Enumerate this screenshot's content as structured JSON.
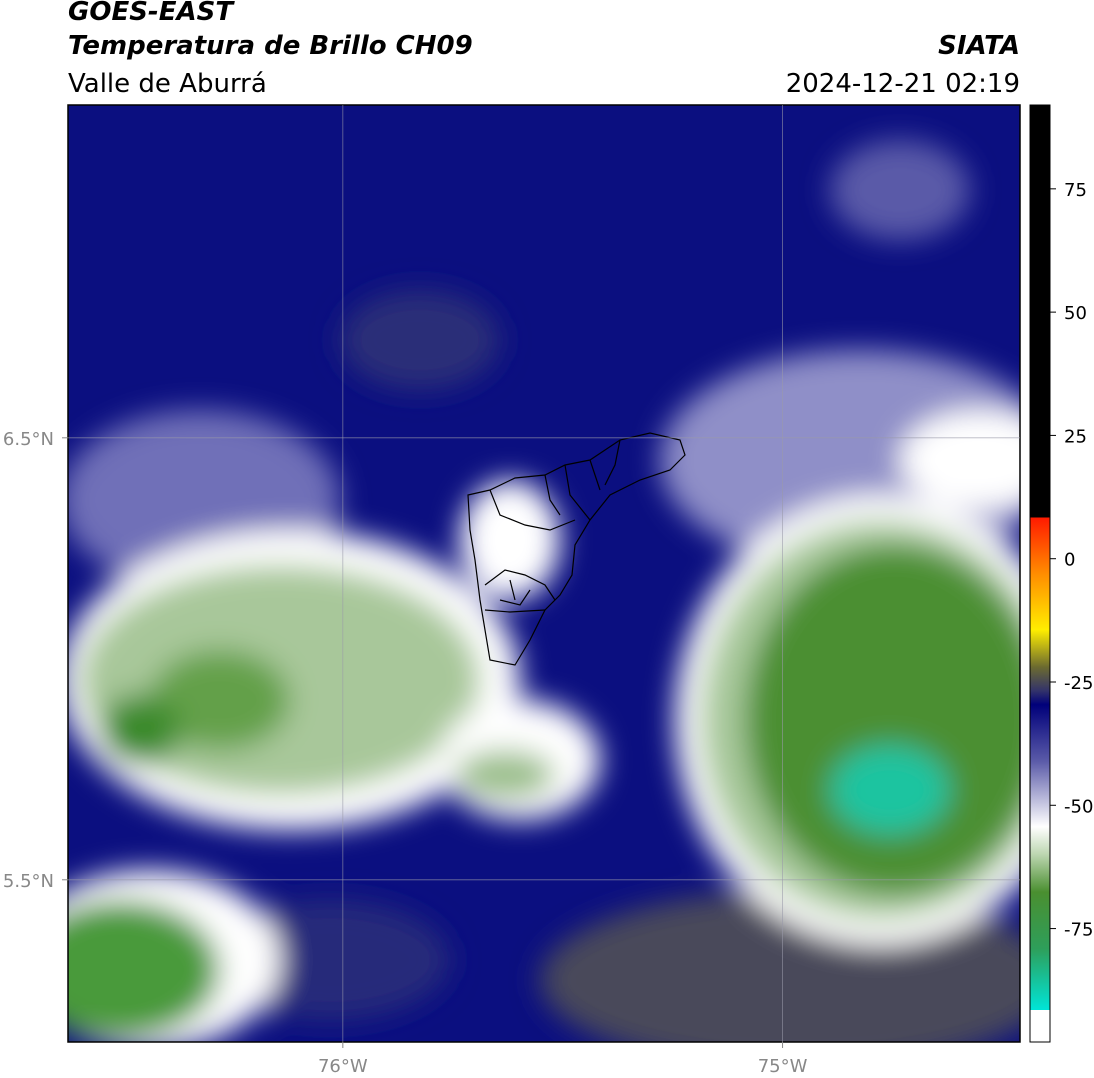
{
  "title": "GOES-EAST",
  "subtitle": "Temperatura de Brillo CH09",
  "region": "Valle de Aburrá",
  "source": "SIATA",
  "timestamp": "2024-12-21 02:19",
  "map": {
    "lon_lim": [
      -76.625,
      -74.46
    ],
    "lat_lim": [
      5.133,
      7.253
    ],
    "lon_ticks": [
      {
        "value": -76,
        "label": "76°W"
      },
      {
        "value": -75,
        "label": "75°W"
      }
    ],
    "lat_ticks": [
      {
        "value": 6.5,
        "label": "6.5°N"
      },
      {
        "value": 5.5,
        "label": "5.5°N"
      }
    ]
  },
  "colorbar": {
    "lim": [
      -98,
      92
    ],
    "ticks": [
      75,
      50,
      25,
      0,
      -25,
      -50,
      -75
    ]
  }
}
